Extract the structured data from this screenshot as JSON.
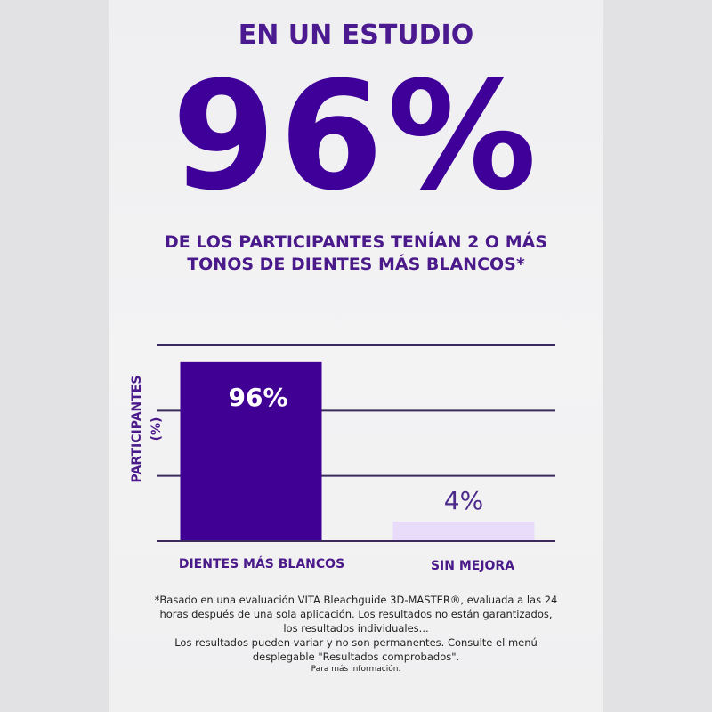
{
  "header": {
    "title": "EN UN ESTUDIO",
    "big_stat": "96%",
    "subtitle_line1": "DE LOS PARTICIPANTES TENÍAN 2 O MÁS",
    "subtitle_line2": "TONOS DE DIENTES MÁS BLANCOS*"
  },
  "chart_data": {
    "type": "bar",
    "title": "",
    "xlabel": "",
    "ylabel": "PARTICIPANTES (%)",
    "ylabel_line1": "PARTICIPANTES",
    "ylabel_line2": "(%)",
    "categories": [
      "DIENTES MÁS BLANCOS",
      "SIN MEJORA"
    ],
    "values": [
      96,
      4
    ],
    "data_labels": [
      "96%",
      "4%"
    ],
    "colors": [
      "#3f0093",
      "#e9dcfb"
    ],
    "ylim": [
      0,
      105
    ],
    "grid": true,
    "gridlines": 4
  },
  "footnote": {
    "line1": "*Basado en una evaluación VITA Bleachguide 3D-MASTER®, evaluada a las 24",
    "line2": "horas después de una sola aplicación. Los resultados no están garantizados,",
    "line3": "los resultados individuales...",
    "line4": "Los resultados pueden variar y no son permanentes. Consulte el menú",
    "line5": "desplegable \"Resultados comprobados\".",
    "line6": "Para más información."
  }
}
